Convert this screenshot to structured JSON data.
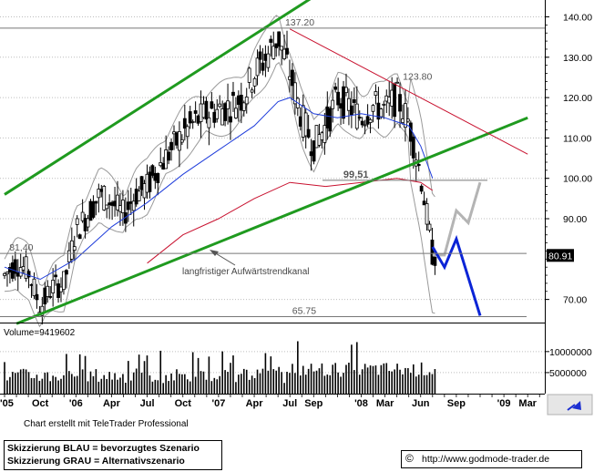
{
  "chart_data": {
    "type": "candlestick",
    "title": "",
    "y_axis": {
      "ticks": [
        "140.00",
        "130.00",
        "120.00",
        "110.00",
        "100.00",
        "90.00",
        "70.00"
      ],
      "tick_values": [
        140,
        130,
        120,
        110,
        100,
        90,
        70
      ],
      "ylim": [
        64.5,
        143.5
      ],
      "last_price": "80.91"
    },
    "x_axis": {
      "labels": [
        "'05",
        "Oct",
        "'06",
        "Apr",
        "Jul",
        "Oct",
        "'07",
        "Apr",
        "Jul",
        "Sep",
        "'08",
        "Mar",
        "Jun",
        "Sep",
        "'09",
        "Mar"
      ],
      "months_index": [
        0,
        3,
        6,
        9,
        12,
        15,
        18,
        21,
        24,
        26,
        30,
        32,
        35,
        38,
        42,
        44
      ],
      "date_range": [
        "2005-07",
        "2009-04"
      ]
    },
    "level_labels": [
      {
        "text": "137.20",
        "value": 137.2,
        "month_index": 23.6
      },
      {
        "text": "123.80",
        "value": 123.8,
        "month_index": 33.5
      },
      {
        "text": "99,51",
        "value": 99.51,
        "month_index": 28.5
      },
      {
        "text": "81,40",
        "value": 81.4,
        "month_index": 0.4
      },
      {
        "text": "65.75",
        "value": 65.75,
        "month_index": 24.2
      }
    ],
    "annotations": [
      "langfristiger Aufwärtstrendkanal"
    ],
    "price_samples": [
      [
        0,
        76
      ],
      [
        1,
        79
      ],
      [
        2,
        77
      ],
      [
        3,
        68
      ],
      [
        4,
        73
      ],
      [
        5,
        74
      ],
      [
        6,
        87
      ],
      [
        7,
        91
      ],
      [
        8,
        96
      ],
      [
        9,
        94
      ],
      [
        10,
        91
      ],
      [
        11,
        96
      ],
      [
        12,
        98
      ],
      [
        13,
        103
      ],
      [
        14,
        107
      ],
      [
        15,
        111
      ],
      [
        16,
        114
      ],
      [
        17,
        116
      ],
      [
        18,
        117
      ],
      [
        19,
        118
      ],
      [
        20,
        120
      ],
      [
        21,
        126
      ],
      [
        22,
        130
      ],
      [
        23,
        135
      ],
      [
        24,
        126
      ],
      [
        25,
        115
      ],
      [
        26,
        108
      ],
      [
        27,
        113
      ],
      [
        28,
        120
      ],
      [
        29,
        118
      ],
      [
        30,
        115
      ],
      [
        31,
        118
      ],
      [
        32,
        117
      ],
      [
        33,
        120
      ],
      [
        34,
        114
      ],
      [
        35,
        101
      ],
      [
        36,
        81
      ]
    ],
    "moving_averages": [
      {
        "name": "MA-38",
        "color": "#1f3ddb",
        "points": [
          [
            0,
            78
          ],
          [
            3,
            75
          ],
          [
            6,
            80
          ],
          [
            9,
            88
          ],
          [
            12,
            94
          ],
          [
            15,
            101
          ],
          [
            18,
            107
          ],
          [
            21,
            113
          ],
          [
            23,
            119
          ],
          [
            24,
            120
          ],
          [
            26,
            116
          ],
          [
            28,
            115
          ],
          [
            30,
            116
          ],
          [
            32,
            115
          ],
          [
            34,
            113
          ],
          [
            35,
            108
          ],
          [
            36,
            100
          ]
        ]
      },
      {
        "name": "MA-200",
        "color": "#c8102e",
        "points": [
          [
            12,
            79
          ],
          [
            15,
            86
          ],
          [
            18,
            90
          ],
          [
            21,
            95
          ],
          [
            24,
            99
          ],
          [
            27,
            98
          ],
          [
            30,
            99
          ],
          [
            33,
            100
          ],
          [
            35,
            99
          ],
          [
            36,
            97
          ]
        ]
      }
    ],
    "trend_channel": {
      "upper": [
        [
          0,
          96
        ],
        [
          26,
          145
        ]
      ],
      "lower": [
        [
          1,
          64
        ],
        [
          44,
          115
        ]
      ],
      "resistance": [
        [
          24,
          137
        ],
        [
          44,
          106
        ]
      ]
    },
    "scenarios": {
      "blue": [
        [
          36,
          83
        ],
        [
          37,
          78
        ],
        [
          38,
          85
        ],
        [
          40,
          66
        ]
      ],
      "gray": [
        [
          36,
          81
        ],
        [
          37,
          81
        ],
        [
          38,
          92
        ],
        [
          39,
          89
        ],
        [
          40,
          99
        ]
      ]
    },
    "volume": {
      "label": "Volume=9419602",
      "ticks": [
        "10000000",
        "5000000"
      ],
      "tick_values": [
        10000000,
        5000000
      ],
      "ylim": [
        0,
        13000000
      ]
    }
  },
  "credit": "Chart erstellt mit TeleTrader Professional",
  "legend_box": {
    "blue": "Skizzierung BLAU = bevorzugtes Szenario",
    "gray": "Skizzierung GRAU = Alternativszenario"
  },
  "source_box": {
    "symbol": "©",
    "url": "http://www.godmode-trader.de"
  },
  "colors": {
    "channel": "#1f9a1f",
    "resistance": "#c8102e",
    "blue_scenario": "#0b24d6",
    "gray_scenario": "#b4b4b4",
    "bollinger": "#9a9a9a",
    "candles": "#000000"
  }
}
